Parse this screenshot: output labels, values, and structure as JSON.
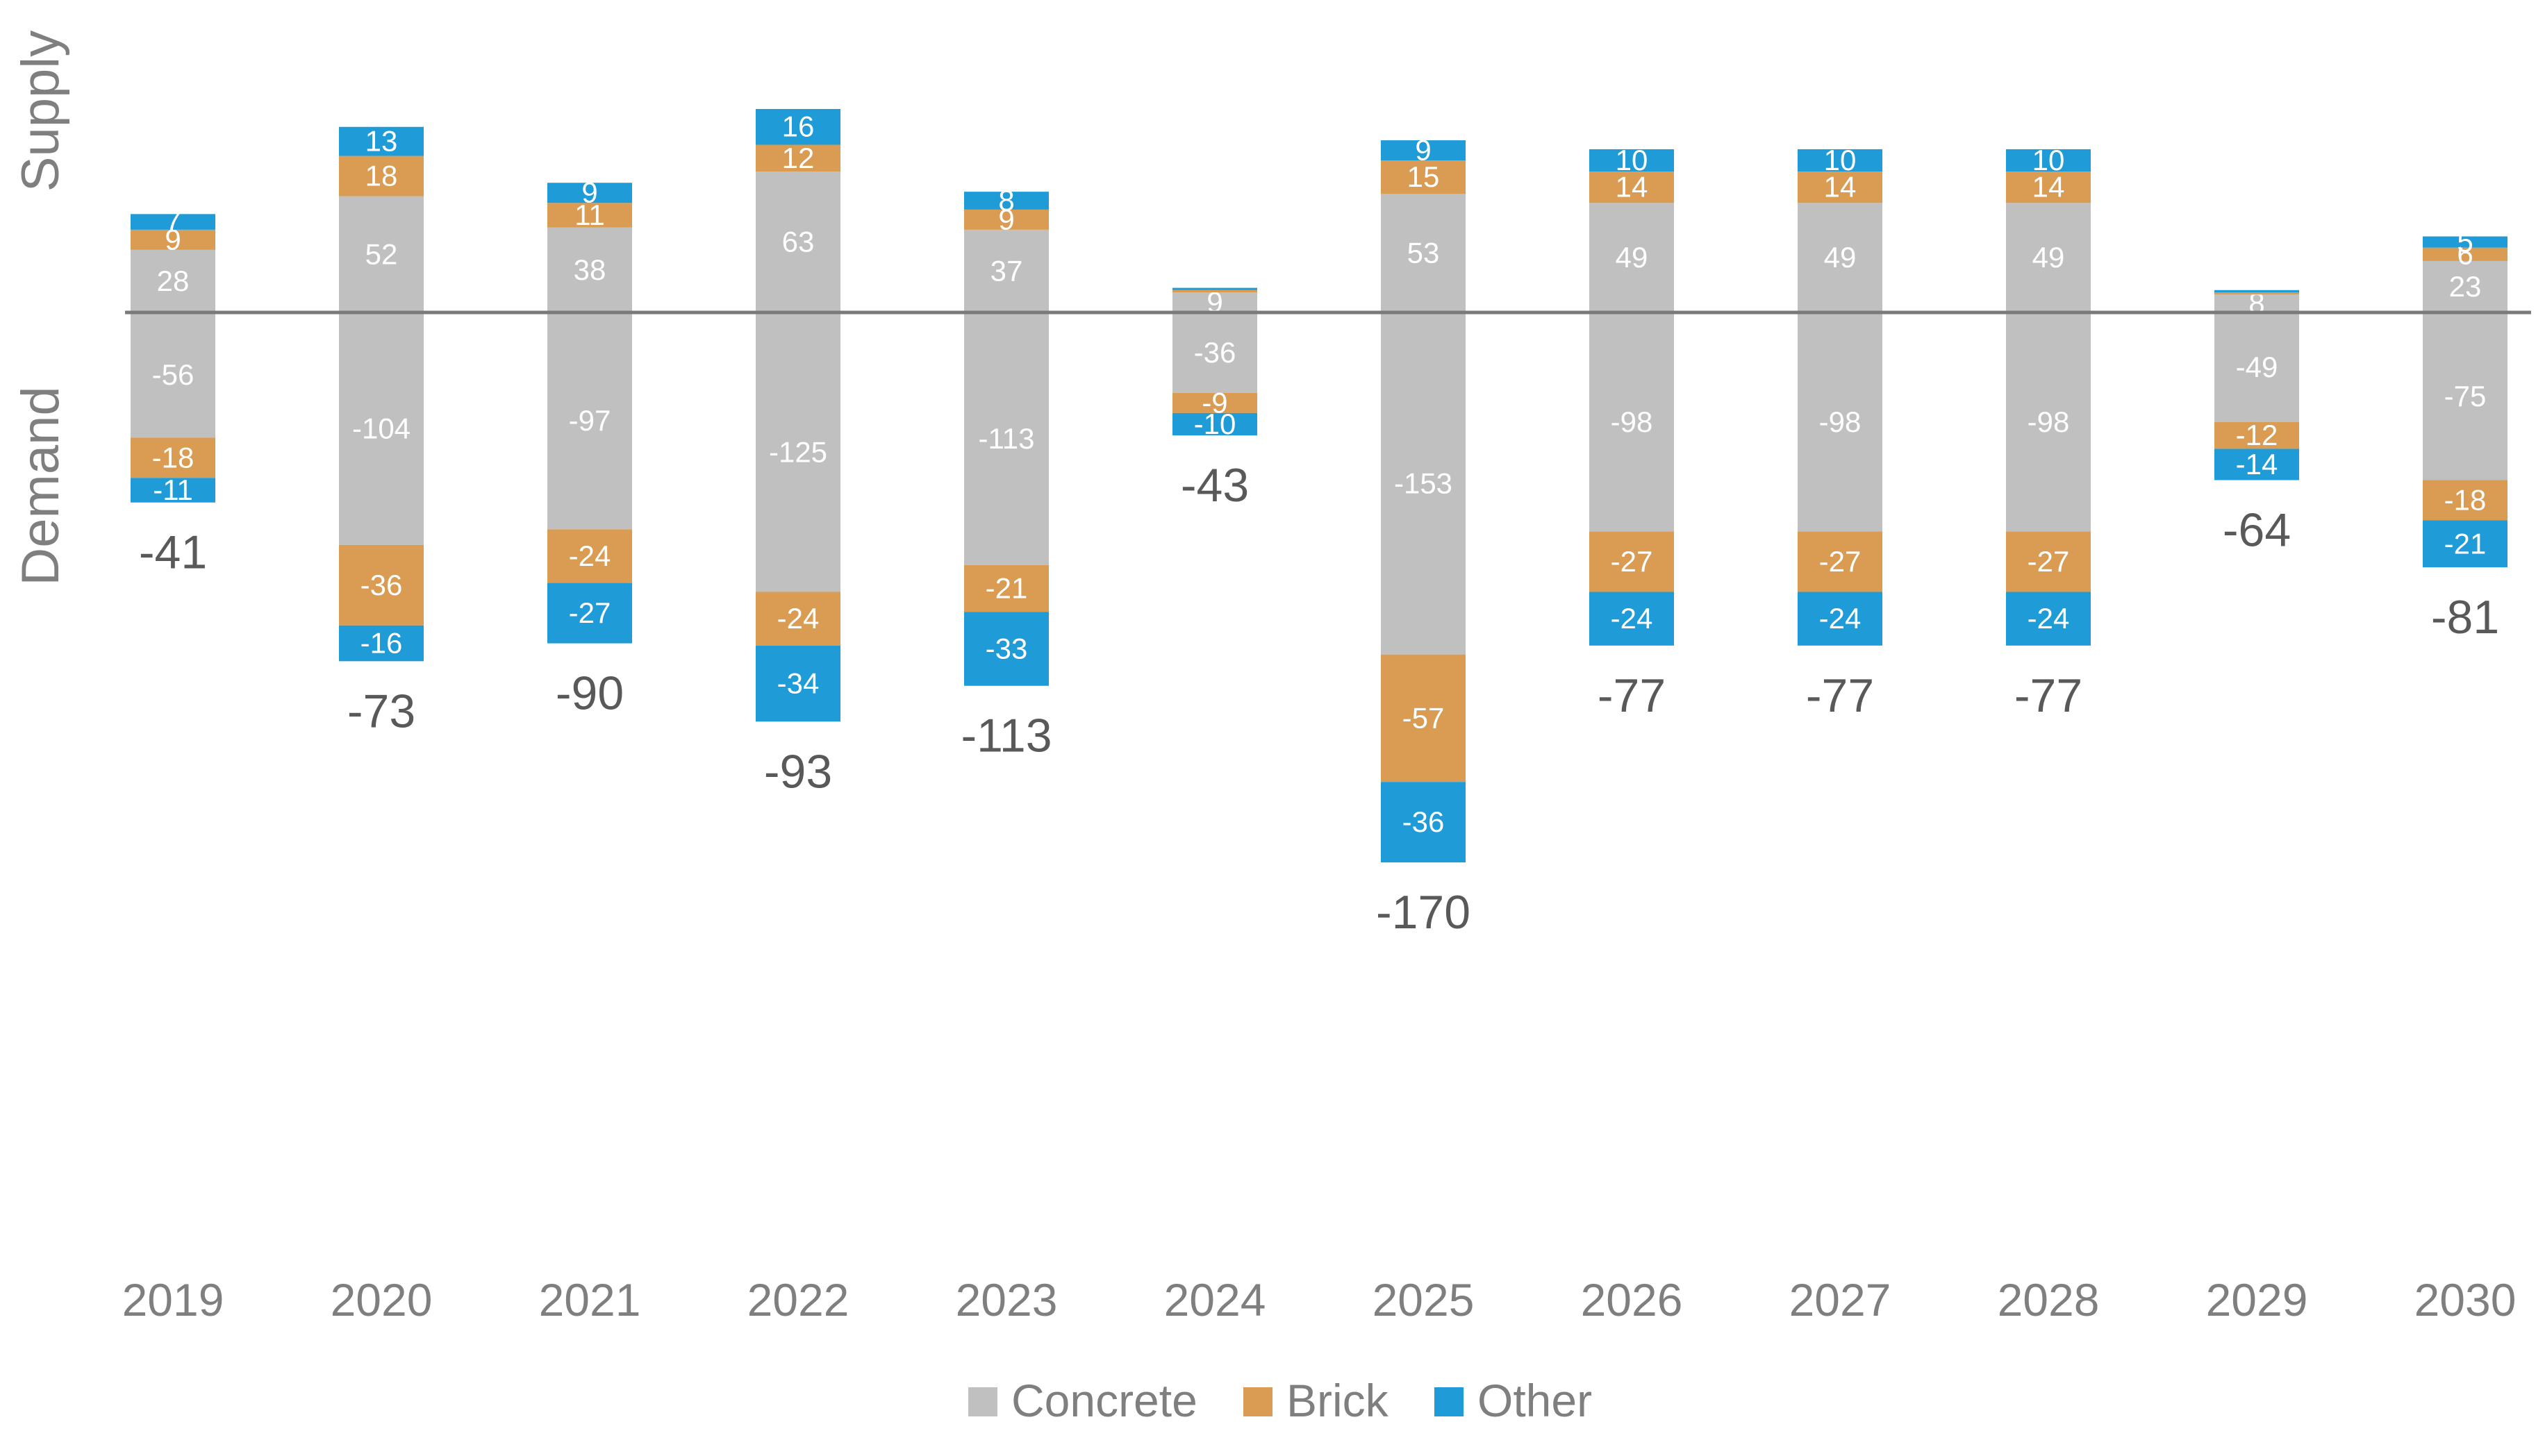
{
  "chart_data": {
    "type": "bar",
    "stacked": true,
    "categories": [
      "2019",
      "2020",
      "2021",
      "2022",
      "2023",
      "2024",
      "2025",
      "2026",
      "2027",
      "2028",
      "2029",
      "2030"
    ],
    "series": [
      {
        "name": "Concrete",
        "color": "#c0c0c0",
        "supply": [
          28,
          52,
          38,
          63,
          37,
          9,
          53,
          49,
          49,
          49,
          8,
          23
        ],
        "demand": [
          -56,
          -104,
          -97,
          -125,
          -113,
          -36,
          -153,
          -98,
          -98,
          -98,
          -49,
          -75
        ]
      },
      {
        "name": "Brick",
        "color": "#d99c52",
        "supply": [
          9,
          18,
          11,
          12,
          9,
          1,
          15,
          14,
          14,
          14,
          1,
          6
        ],
        "demand": [
          -18,
          -36,
          -24,
          -24,
          -21,
          -9,
          -57,
          -27,
          -27,
          -27,
          -12,
          -18
        ]
      },
      {
        "name": "Other",
        "color": "#1f9bd7",
        "supply": [
          7,
          13,
          9,
          16,
          8,
          1,
          9,
          10,
          10,
          10,
          1,
          5
        ],
        "demand": [
          -11,
          -16,
          -27,
          -34,
          -33,
          -10,
          -36,
          -24,
          -24,
          -24,
          -14,
          -21
        ]
      }
    ],
    "supply_labels": [
      [
        "28",
        "9",
        "7"
      ],
      [
        "52",
        "18",
        "13"
      ],
      [
        "38",
        "11",
        "9"
      ],
      [
        "63",
        "12",
        "16"
      ],
      [
        "37",
        "9",
        "8"
      ],
      [
        "9",
        "",
        ""
      ],
      [
        "53",
        "15",
        "9"
      ],
      [
        "49",
        "14",
        "10"
      ],
      [
        "49",
        "14",
        "10"
      ],
      [
        "49",
        "14",
        "10"
      ],
      [
        "8",
        "",
        ""
      ],
      [
        "23",
        "6",
        "5"
      ]
    ],
    "net_totals": [
      -41,
      -73,
      -90,
      -93,
      -113,
      -43,
      -170,
      -77,
      -77,
      -77,
      -64,
      -81
    ],
    "side_labels": {
      "top": "Supply",
      "bottom": "Demand"
    },
    "ylim": [
      -185,
      62
    ],
    "grid": false,
    "legend_position": "bottom-center"
  }
}
